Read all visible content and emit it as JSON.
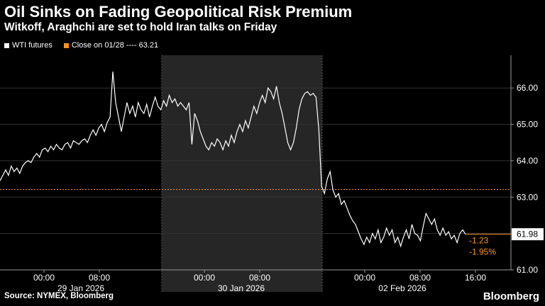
{
  "header": {
    "title": "Oil Sinks on Fading Geopolitical Risk Premium",
    "subtitle": "Witkoff, Araghchi are set to hold Iran talks on Friday"
  },
  "legend": {
    "series_label": "WTI futures",
    "ref_label": "Close on 01/28 ---- 63.21"
  },
  "footer": {
    "source": "Source: NYMEX, Bloomberg",
    "brand": "Bloomberg"
  },
  "colors": {
    "series": "#ffffff",
    "reference": "#f7931e",
    "highlight_band": "#262626",
    "axis": "#999999"
  },
  "chart_data": {
    "type": "line",
    "y_ticks": [
      "61.00",
      "62.00",
      "63.00",
      "64.00",
      "65.00",
      "66.00"
    ],
    "ylim": [
      61,
      66.9
    ],
    "reference_line": {
      "label": "Close on 01/28",
      "value": 63.21
    },
    "last_value_label": "61.98",
    "change_labels": [
      "-1.23",
      "-1.95%"
    ],
    "time_labels": [
      "00:00",
      "08:00",
      "00:00",
      "08:00",
      "00:00",
      "08:00",
      "16:00"
    ],
    "day_labels": [
      "29 Jan 2026",
      "30 Jan 2026",
      "02 Feb 2026"
    ],
    "series": [
      {
        "name": "WTI futures",
        "points": [
          [
            0,
            63.45
          ],
          [
            2,
            63.6
          ],
          [
            4,
            63.75
          ],
          [
            6,
            63.6
          ],
          [
            8,
            63.85
          ],
          [
            10,
            63.7
          ],
          [
            12,
            63.8
          ],
          [
            14,
            63.65
          ],
          [
            16,
            63.85
          ],
          [
            18,
            63.95
          ],
          [
            20,
            64.0
          ],
          [
            22,
            63.95
          ],
          [
            24,
            64.1
          ],
          [
            26,
            64.2
          ],
          [
            28,
            64.1
          ],
          [
            30,
            64.3
          ],
          [
            32,
            64.35
          ],
          [
            34,
            64.25
          ],
          [
            36,
            64.4
          ],
          [
            38,
            64.3
          ],
          [
            40,
            64.45
          ],
          [
            42,
            64.35
          ],
          [
            44,
            64.3
          ],
          [
            46,
            64.45
          ],
          [
            48,
            64.5
          ],
          [
            50,
            64.35
          ],
          [
            52,
            64.55
          ],
          [
            54,
            64.5
          ],
          [
            56,
            64.45
          ],
          [
            58,
            64.55
          ],
          [
            60,
            64.6
          ],
          [
            62,
            64.5
          ],
          [
            64,
            64.7
          ],
          [
            66,
            64.85
          ],
          [
            68,
            64.7
          ],
          [
            70,
            64.9
          ],
          [
            72,
            65.0
          ],
          [
            74,
            64.8
          ],
          [
            76,
            65.05
          ],
          [
            78,
            65.2
          ],
          [
            80,
            66.45
          ],
          [
            82,
            65.6
          ],
          [
            84,
            65.2
          ],
          [
            86,
            64.8
          ],
          [
            88,
            65.2
          ],
          [
            90,
            65.6
          ],
          [
            92,
            65.3
          ],
          [
            94,
            65.5
          ],
          [
            96,
            65.2
          ],
          [
            98,
            65.6
          ],
          [
            100,
            65.4
          ],
          [
            102,
            65.3
          ],
          [
            104,
            65.55
          ],
          [
            106,
            65.2
          ],
          [
            108,
            65.5
          ],
          [
            110,
            65.75
          ],
          [
            112,
            65.5
          ],
          [
            114,
            65.4
          ],
          [
            116,
            65.65
          ],
          [
            118,
            65.5
          ],
          [
            120,
            65.8
          ],
          [
            122,
            65.6
          ],
          [
            124,
            65.7
          ],
          [
            126,
            65.5
          ],
          [
            128,
            65.6
          ],
          [
            130,
            65.5
          ],
          [
            132,
            65.4
          ],
          [
            134,
            65.6
          ],
          [
            136,
            64.45
          ],
          [
            138,
            65.3
          ],
          [
            140,
            65.1
          ],
          [
            142,
            64.8
          ],
          [
            144,
            64.6
          ],
          [
            146,
            64.4
          ],
          [
            148,
            64.3
          ],
          [
            150,
            64.5
          ],
          [
            152,
            64.4
          ],
          [
            154,
            64.6
          ],
          [
            156,
            64.5
          ],
          [
            158,
            64.3
          ],
          [
            160,
            64.55
          ],
          [
            162,
            64.4
          ],
          [
            164,
            64.7
          ],
          [
            166,
            64.5
          ],
          [
            168,
            64.8
          ],
          [
            170,
            65.0
          ],
          [
            172,
            64.8
          ],
          [
            174,
            65.1
          ],
          [
            176,
            64.9
          ],
          [
            178,
            65.2
          ],
          [
            180,
            65.5
          ],
          [
            182,
            65.3
          ],
          [
            184,
            65.6
          ],
          [
            186,
            65.8
          ],
          [
            188,
            65.6
          ],
          [
            190,
            66.0
          ],
          [
            192,
            65.9
          ],
          [
            194,
            65.7
          ],
          [
            196,
            66.05
          ],
          [
            198,
            65.6
          ],
          [
            200,
            65.3
          ],
          [
            202,
            64.9
          ],
          [
            204,
            64.5
          ],
          [
            206,
            64.3
          ],
          [
            208,
            64.5
          ],
          [
            210,
            64.9
          ],
          [
            212,
            65.4
          ],
          [
            214,
            65.7
          ],
          [
            216,
            65.85
          ],
          [
            218,
            65.9
          ],
          [
            220,
            65.8
          ],
          [
            222,
            65.85
          ],
          [
            224,
            65.75
          ],
          [
            226,
            64.85
          ],
          [
            228,
            63.3
          ],
          [
            230,
            63.1
          ],
          [
            232,
            63.5
          ],
          [
            234,
            63.7
          ],
          [
            236,
            63.2
          ],
          [
            238,
            63.0
          ],
          [
            240,
            63.1
          ],
          [
            242,
            62.8
          ],
          [
            244,
            62.9
          ],
          [
            246,
            62.7
          ],
          [
            248,
            62.5
          ],
          [
            250,
            62.35
          ],
          [
            252,
            62.25
          ],
          [
            254,
            62.05
          ],
          [
            256,
            61.85
          ],
          [
            258,
            61.7
          ],
          [
            260,
            61.9
          ],
          [
            262,
            61.75
          ],
          [
            264,
            62.0
          ],
          [
            266,
            61.85
          ],
          [
            268,
            62.1
          ],
          [
            270,
            61.75
          ],
          [
            272,
            61.9
          ],
          [
            274,
            62.15
          ],
          [
            276,
            61.95
          ],
          [
            278,
            62.1
          ],
          [
            280,
            61.75
          ],
          [
            282,
            61.9
          ],
          [
            284,
            61.65
          ],
          [
            286,
            61.9
          ],
          [
            288,
            62.1
          ],
          [
            290,
            61.85
          ],
          [
            292,
            62.25
          ],
          [
            294,
            62.0
          ],
          [
            296,
            61.95
          ],
          [
            298,
            61.8
          ],
          [
            300,
            62.2
          ],
          [
            302,
            62.55
          ],
          [
            304,
            62.4
          ],
          [
            306,
            62.25
          ],
          [
            308,
            62.4
          ],
          [
            310,
            62.1
          ],
          [
            312,
            61.95
          ],
          [
            314,
            62.15
          ],
          [
            316,
            61.95
          ],
          [
            318,
            62.05
          ],
          [
            320,
            61.85
          ],
          [
            322,
            61.95
          ],
          [
            324,
            61.75
          ],
          [
            326,
            62.0
          ],
          [
            328,
            62.1
          ],
          [
            330,
            61.98
          ]
        ]
      }
    ]
  }
}
